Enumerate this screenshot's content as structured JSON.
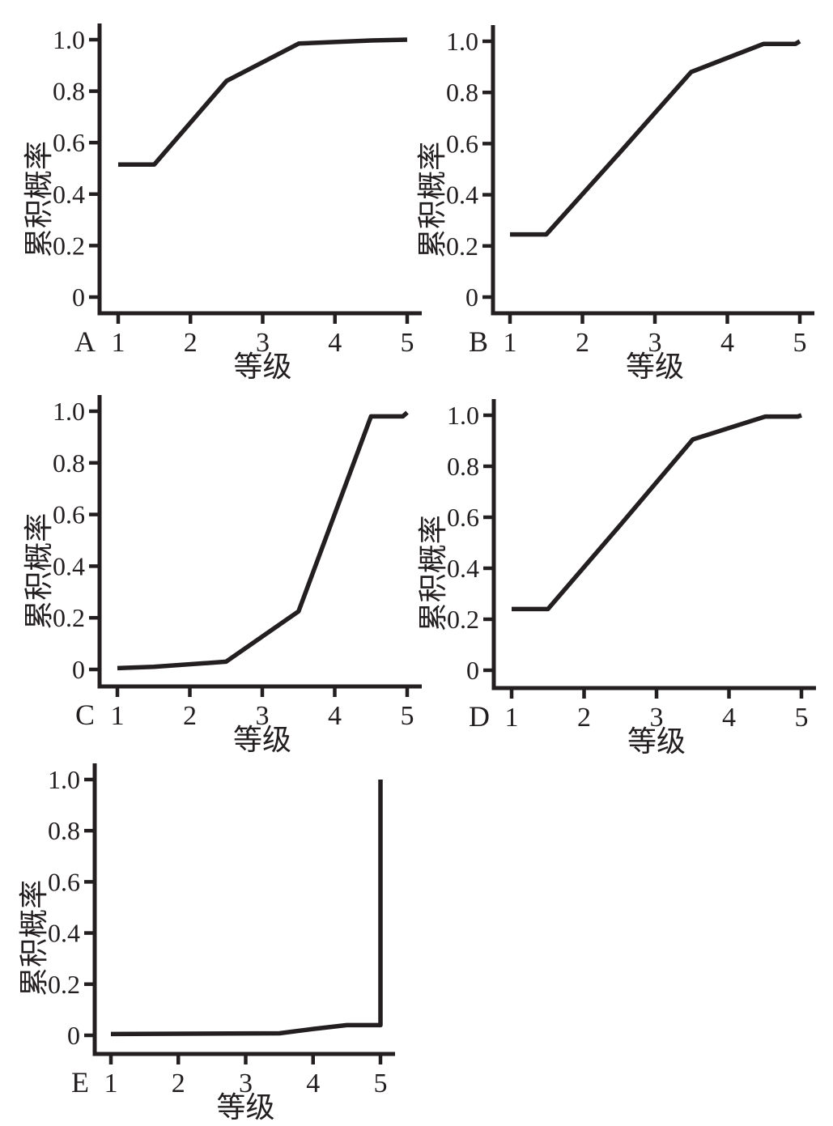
{
  "figure": {
    "background": "#ffffff",
    "colors": {
      "line": "#231f20",
      "axis": "#231f20",
      "text": "#231f20"
    }
  },
  "chart_data": [
    {
      "type": "line",
      "panel_label": "A",
      "xlabel": "等级",
      "ylabel": "累积概率",
      "xlim": [
        1,
        5
      ],
      "ylim": [
        0,
        1
      ],
      "grid": false,
      "legend": "none",
      "x_ticks": [
        "1",
        "2",
        "3",
        "4",
        "5"
      ],
      "y_ticks": [
        "0",
        "0.2",
        "0.4",
        "0.6",
        "0.8",
        "1.0"
      ],
      "points": [
        [
          1,
          0.515
        ],
        [
          1.5,
          0.515
        ],
        [
          2.5,
          0.84
        ],
        [
          3.5,
          0.985
        ],
        [
          4.5,
          0.997
        ],
        [
          5,
          1.0
        ]
      ]
    },
    {
      "type": "line",
      "panel_label": "B",
      "xlabel": "等级",
      "ylabel": "累积概率",
      "xlim": [
        1,
        5
      ],
      "ylim": [
        0,
        1
      ],
      "grid": false,
      "legend": "none",
      "x_ticks": [
        "1",
        "2",
        "3",
        "4",
        "5"
      ],
      "y_ticks": [
        "0",
        "0.2",
        "0.4",
        "0.6",
        "0.8",
        "1.0"
      ],
      "points": [
        [
          1,
          0.245
        ],
        [
          1.5,
          0.245
        ],
        [
          2.5,
          0.56
        ],
        [
          3.5,
          0.88
        ],
        [
          4.5,
          0.99
        ],
        [
          4.94,
          0.99
        ],
        [
          5,
          1.0
        ]
      ]
    },
    {
      "type": "line",
      "panel_label": "C",
      "xlabel": "等级",
      "ylabel": "累积概率",
      "xlim": [
        1,
        5
      ],
      "ylim": [
        0,
        1
      ],
      "grid": false,
      "legend": "none",
      "x_ticks": [
        "1",
        "2",
        "3",
        "4",
        "5"
      ],
      "y_ticks": [
        "0",
        "0.2",
        "0.4",
        "0.6",
        "0.8",
        "1.0"
      ],
      "points": [
        [
          1,
          0.005
        ],
        [
          1.5,
          0.01
        ],
        [
          2.5,
          0.03
        ],
        [
          3.5,
          0.225
        ],
        [
          4.5,
          0.98
        ],
        [
          4.94,
          0.98
        ],
        [
          5,
          0.995
        ]
      ]
    },
    {
      "type": "line",
      "panel_label": "D",
      "xlabel": "等级",
      "ylabel": "累积概率",
      "xlim": [
        1,
        5
      ],
      "ylim": [
        0,
        1
      ],
      "grid": false,
      "legend": "none",
      "x_ticks": [
        "1",
        "2",
        "3",
        "4",
        "5"
      ],
      "y_ticks": [
        "0",
        "0.2",
        "0.4",
        "0.6",
        "0.8",
        "1.0"
      ],
      "points": [
        [
          1,
          0.24
        ],
        [
          1.5,
          0.24
        ],
        [
          2.5,
          0.57
        ],
        [
          3.5,
          0.905
        ],
        [
          4.5,
          0.995
        ],
        [
          4.95,
          0.995
        ],
        [
          5,
          1.0
        ]
      ]
    },
    {
      "type": "line",
      "panel_label": "E",
      "xlabel": "等级",
      "ylabel": "累积概率",
      "xlim": [
        1,
        5
      ],
      "ylim": [
        0,
        1
      ],
      "grid": false,
      "legend": "none",
      "x_ticks": [
        "1",
        "2",
        "3",
        "4",
        "5"
      ],
      "y_ticks": [
        "0",
        "0.2",
        "0.4",
        "0.6",
        "0.8",
        "1.0"
      ],
      "points": [
        [
          1,
          0.005
        ],
        [
          3.5,
          0.008
        ],
        [
          4,
          0.025
        ],
        [
          4.5,
          0.04
        ],
        [
          5,
          0.04
        ],
        [
          5,
          1.0
        ]
      ]
    }
  ]
}
